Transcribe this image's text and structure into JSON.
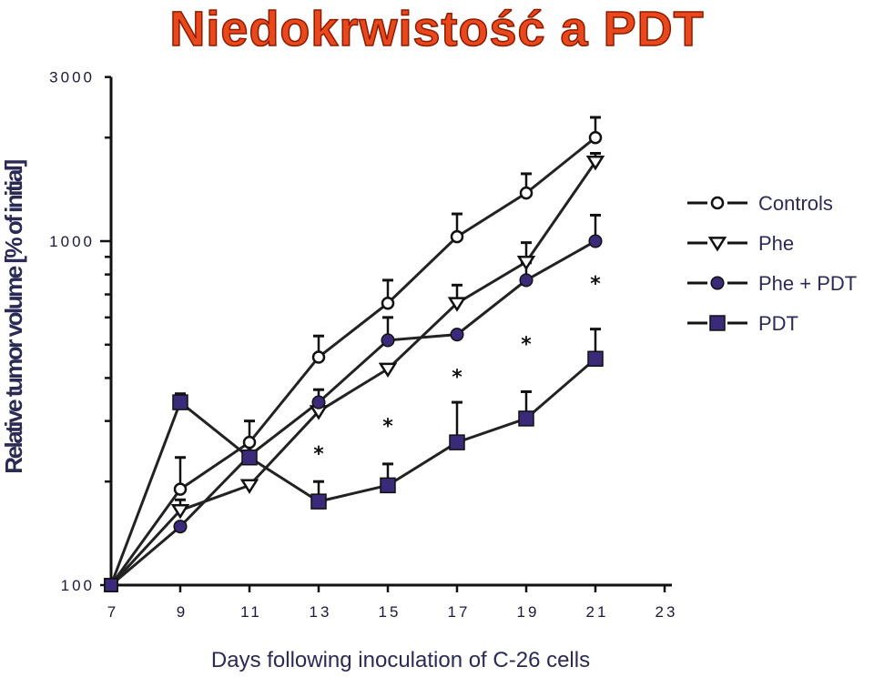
{
  "chart_data": {
    "type": "line",
    "title": "Niedokrwistość a PDT",
    "xlabel": "Days following inoculation of C-26 cells",
    "ylabel": "Relative tumor volume [% of initial]",
    "yscale": "log",
    "xlim": [
      7,
      23
    ],
    "ylim": [
      100,
      3000
    ],
    "x_ticks": [
      7,
      9,
      11,
      13,
      15,
      17,
      19,
      21,
      23
    ],
    "y_tick_labels": [
      {
        "value": 100,
        "label": "100"
      },
      {
        "value": 1000,
        "label": "1000"
      },
      {
        "value": 3000,
        "label": "3000"
      }
    ],
    "legend_position": "right",
    "series": [
      {
        "name": "Controls",
        "marker": "open-circle",
        "color": "#1a1a1a",
        "x": [
          7,
          9,
          11,
          13,
          15,
          17,
          19,
          21
        ],
        "y": [
          100,
          190,
          260,
          460,
          660,
          1030,
          1380,
          2000
        ],
        "err": [
          0,
          45,
          40,
          70,
          110,
          170,
          190,
          290
        ]
      },
      {
        "name": "Phe",
        "marker": "open-triangle-down",
        "color": "#1a1a1a",
        "x": [
          7,
          9,
          11,
          13,
          15,
          17,
          19,
          21
        ],
        "y": [
          100,
          165,
          195,
          320,
          425,
          660,
          870,
          1700
        ],
        "err": [
          0,
          12,
          0,
          25,
          0,
          85,
          120,
          100
        ]
      },
      {
        "name": "Phe + PDT",
        "marker": "filled-circle",
        "color": "#3b2a7a",
        "x": [
          7,
          9,
          11,
          13,
          15,
          17,
          19,
          21
        ],
        "y": [
          100,
          148,
          238,
          340,
          515,
          535,
          770,
          1000
        ],
        "err": [
          0,
          0,
          20,
          30,
          85,
          0,
          95,
          190
        ]
      },
      {
        "name": "PDT",
        "marker": "filled-square",
        "color": "#3b2a7a",
        "x": [
          7,
          9,
          11,
          13,
          15,
          17,
          19,
          21
        ],
        "y": [
          100,
          340,
          235,
          175,
          195,
          260,
          305,
          455
        ],
        "err": [
          0,
          20,
          0,
          25,
          30,
          80,
          60,
          100
        ]
      }
    ],
    "significance_markers": {
      "symbol": "*",
      "x": [
        13,
        15,
        17,
        19,
        21
      ],
      "y": [
        245,
        295,
        410,
        510,
        765
      ]
    }
  }
}
